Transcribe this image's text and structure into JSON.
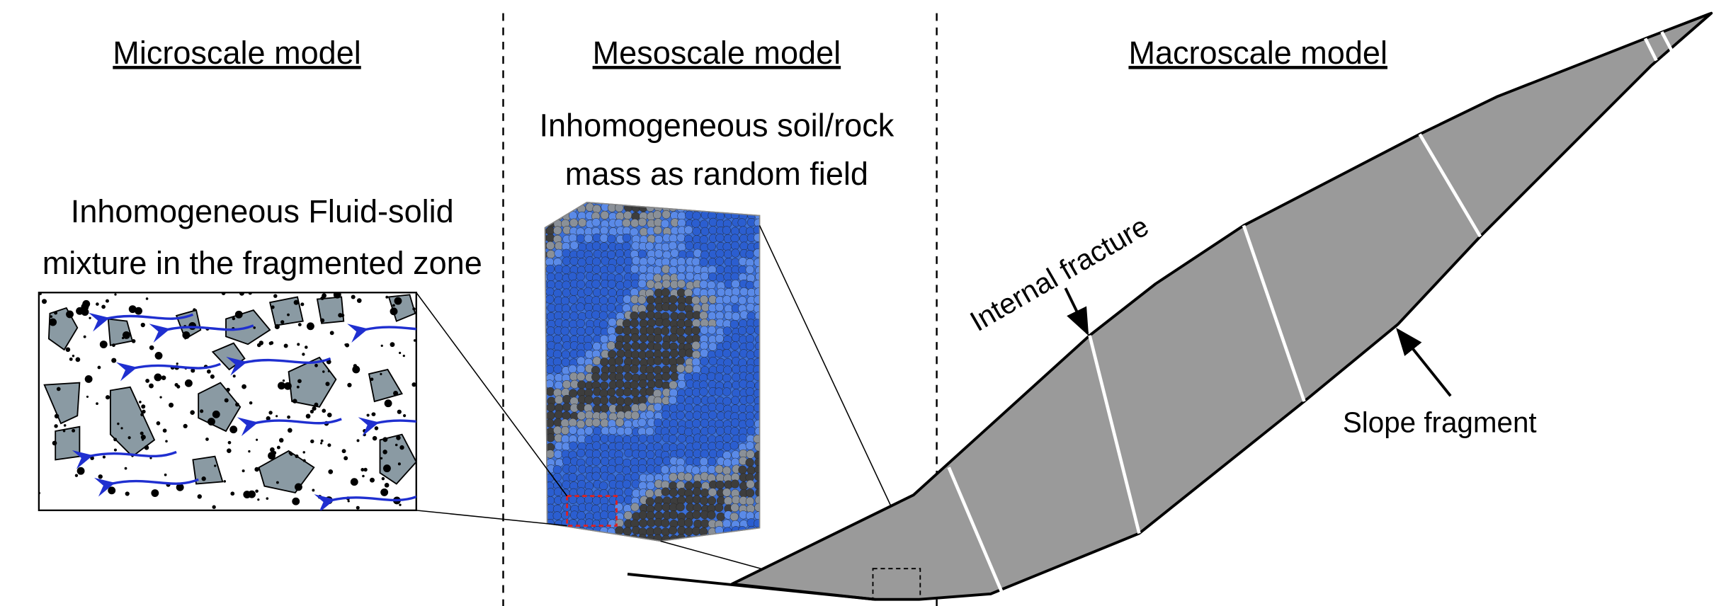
{
  "panels": [
    {
      "title": "Microscale model",
      "description": [
        "Inhomogeneous Fluid-solid",
        "mixture in the fragmented zone"
      ]
    },
    {
      "title": "Mesoscale model",
      "description": [
        "Inhomogeneous soil/rock",
        "mass as random field"
      ]
    },
    {
      "title": "Macroscale model"
    }
  ],
  "labels": {
    "internal_fracture": "Internal fracture",
    "slope_fragment": "Slope fragment"
  }
}
